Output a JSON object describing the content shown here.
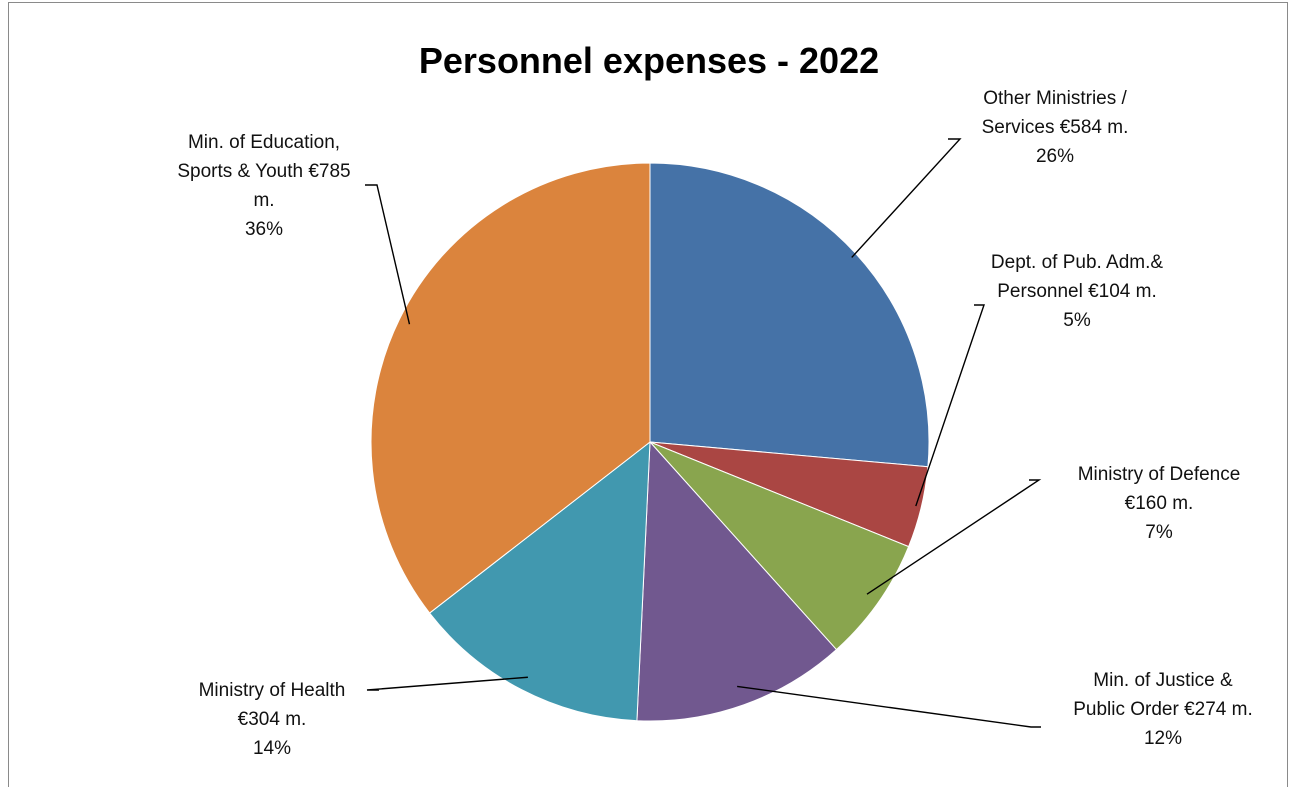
{
  "chart_data": {
    "type": "pie",
    "title": "Personnel expenses - 2022",
    "slices": [
      {
        "name": "Other Ministries / Services",
        "value": 584,
        "value_label": "€584 m.",
        "percent": 26,
        "percent_label": "26%",
        "color": "#4572a7",
        "label_lines": [
          "Other Ministries /",
          "Services €584 m.",
          "26%"
        ]
      },
      {
        "name": "Dept. of Pub. Adm.& Personnel",
        "value": 104,
        "value_label": "€104 m.",
        "percent": 5,
        "percent_label": "5%",
        "color": "#aa4643",
        "label_lines": [
          "Dept. of Pub. Adm.&",
          "Personnel €104 m.",
          "5%"
        ]
      },
      {
        "name": "Ministry of Defence",
        "value": 160,
        "value_label": "€160 m.",
        "percent": 7,
        "percent_label": "7%",
        "color": "#89a54e",
        "label_lines": [
          "Ministry of Defence",
          "€160 m.",
          "7%"
        ]
      },
      {
        "name": "Min. of Justice & Public Order",
        "value": 274,
        "value_label": "€274 m.",
        "percent": 12,
        "percent_label": "12%",
        "color": "#71588f",
        "label_lines": [
          "Min. of Justice &",
          "Public Order €274 m.",
          "12%"
        ]
      },
      {
        "name": "Ministry of Health",
        "value": 304,
        "value_label": "€304 m.",
        "percent": 14,
        "percent_label": "14%",
        "color": "#4198af",
        "label_lines": [
          "Ministry of Health",
          "€304 m.",
          "14%"
        ]
      },
      {
        "name": "Min. of Education, Sports & Youth",
        "value": 785,
        "value_label": "€785 m.",
        "percent": 36,
        "percent_label": "36%",
        "color": "#db843d",
        "label_lines": [
          "Min. of Education,",
          "Sports & Youth €785",
          "m.",
          "36%"
        ]
      }
    ],
    "start_angle": "12 o'clock",
    "direction": "clockwise",
    "legend": "none (data labels with leader lines)"
  }
}
